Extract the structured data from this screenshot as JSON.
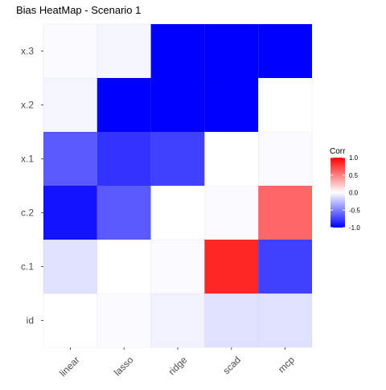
{
  "chart_data": {
    "type": "heatmap",
    "title": "Bias HeatMap - Scenario 1",
    "xlabel": "",
    "ylabel": "",
    "x_categories": [
      "linear",
      "lasso",
      "ridge",
      "scad",
      "mcp"
    ],
    "y_categories": [
      "id",
      "c.1",
      "c.2",
      "x.1",
      "x.2",
      "x.3"
    ],
    "values": {
      "x.3": [
        -0.02,
        -0.04,
        -1.0,
        -1.0,
        -1.0
      ],
      "x.2": [
        -0.04,
        -1.0,
        -1.0,
        -1.0,
        0.0
      ],
      "x.1": [
        -0.65,
        -0.8,
        -0.75,
        0.0,
        -0.02
      ],
      "c.2": [
        -0.93,
        -0.65,
        0.0,
        -0.02,
        0.6
      ],
      "c.1": [
        -0.12,
        0.0,
        -0.02,
        0.85,
        -0.75
      ],
      "id": [
        0.0,
        -0.02,
        -0.05,
        -0.12,
        -0.12
      ]
    },
    "legend": {
      "title": "Corr",
      "position": "right",
      "ticks": [
        "1.0",
        "0.5",
        "0.0",
        "-0.5",
        "-1.0"
      ],
      "range": [
        -1,
        1
      ],
      "low_color": "#0000FF",
      "mid_color": "#FFFFFF",
      "high_color": "#FF0000"
    },
    "grid": true
  }
}
